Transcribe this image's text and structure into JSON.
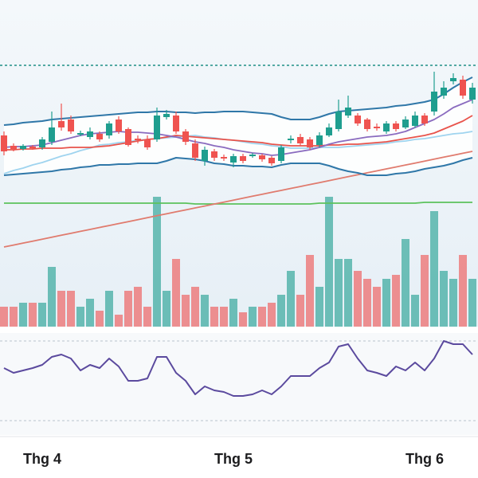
{
  "chart_data": {
    "type": "candlestick",
    "categories": [
      null,
      null,
      null,
      null,
      "Thg 4",
      null,
      null,
      null,
      null,
      null,
      null,
      null,
      null,
      null,
      null,
      null,
      null,
      null,
      null,
      null,
      null,
      null,
      null,
      null,
      "Thg 5",
      null,
      null,
      null,
      null,
      null,
      null,
      null,
      null,
      null,
      null,
      null,
      null,
      null,
      null,
      null,
      null,
      null,
      null,
      null,
      "Thg 6",
      null,
      null,
      null,
      null,
      null
    ],
    "open": [
      80,
      67,
      63,
      66,
      65,
      72,
      98,
      100,
      81,
      78,
      82,
      80,
      100,
      88,
      76,
      75,
      75,
      103,
      105,
      85,
      70,
      48,
      60,
      53,
      46,
      54,
      54,
      55,
      52,
      48,
      74,
      78,
      75,
      68,
      80,
      88,
      105,
      105,
      100,
      91,
      85,
      95,
      90,
      92,
      105,
      110,
      130,
      148,
      150,
      125
    ],
    "high": [
      85,
      70,
      69,
      68,
      78,
      110,
      120,
      105,
      86,
      90,
      85,
      98,
      104,
      90,
      80,
      80,
      115,
      112,
      110,
      88,
      75,
      66,
      63,
      56,
      57,
      57,
      58,
      57,
      54,
      68,
      80,
      82,
      78,
      84,
      95,
      125,
      130,
      108,
      102,
      95,
      98,
      98,
      104,
      110,
      108,
      160,
      148,
      158,
      155,
      146
    ],
    "low": [
      55,
      60,
      61,
      62,
      62,
      68,
      86,
      82,
      79,
      75,
      72,
      76,
      82,
      66,
      70,
      62,
      72,
      100,
      82,
      68,
      48,
      42,
      48,
      48,
      40,
      45,
      52,
      47,
      42,
      45,
      70,
      67,
      62,
      65,
      78,
      85,
      102,
      92,
      85,
      86,
      82,
      85,
      88,
      90,
      92,
      105,
      126,
      144,
      126,
      120
    ],
    "close": [
      60,
      63,
      67,
      64,
      75,
      90,
      90,
      85,
      83,
      85,
      75,
      95,
      85,
      68,
      74,
      65,
      105,
      107,
      85,
      72,
      52,
      62,
      52,
      51,
      54,
      48,
      56,
      50,
      45,
      65,
      76,
      70,
      65,
      80,
      90,
      110,
      115,
      95,
      88,
      89,
      95,
      88,
      100,
      105,
      95,
      135,
      140,
      152,
      130,
      140
    ],
    "up_color": "#1f9e8f",
    "down_color": "#ef5350",
    "ylim": [
      -160,
      250
    ],
    "level": 168,
    "level_color": "#1f8f86",
    "bands": {
      "color": "#2f77a8",
      "fill": "#ffffff",
      "upper": [
        93,
        94,
        96,
        97,
        98,
        100,
        101,
        102,
        103,
        104,
        105,
        106,
        107,
        108,
        109,
        109,
        110,
        110,
        109,
        109,
        108,
        109,
        109,
        110,
        110,
        110,
        109,
        108,
        107,
        103,
        100,
        100,
        100,
        103,
        107,
        110,
        111,
        112,
        113,
        114,
        115,
        117,
        118,
        120,
        122,
        125,
        132,
        140,
        147,
        153
      ],
      "lower": [
        30,
        31,
        32,
        33,
        34,
        35,
        37,
        38,
        40,
        41,
        43,
        43,
        44,
        44,
        45,
        45,
        45,
        48,
        52,
        51,
        50,
        48,
        45,
        44,
        42,
        42,
        41,
        41,
        40,
        43,
        45,
        45,
        45,
        45,
        42,
        38,
        35,
        33,
        30,
        30,
        30,
        32,
        33,
        35,
        38,
        40,
        42,
        45,
        49,
        52
      ]
    },
    "overlays": [
      {
        "color": "#5cc25c",
        "values": [
          -5,
          -5,
          -5,
          -5,
          -5,
          -5,
          -5,
          -5,
          -5,
          -5,
          -5,
          -5,
          -5,
          -5,
          -5,
          -5,
          -5,
          -5,
          -5,
          -5,
          -6,
          -6,
          -6,
          -6,
          -6,
          -6,
          -6,
          -6,
          -6,
          -6,
          -6,
          -6,
          -6,
          -5,
          -5,
          -5,
          -5,
          -5,
          -5,
          -5,
          -5,
          -5,
          -5,
          -5,
          -4,
          -4,
          -4,
          -4,
          -4,
          -4
        ]
      },
      {
        "color": "#e07b6e",
        "values": [
          -60,
          -57.6,
          -55.1,
          -52.7,
          -50.2,
          -47.8,
          -45.3,
          -42.9,
          -40.4,
          -38,
          -35.5,
          -33.1,
          -30.6,
          -28.2,
          -25.7,
          -23.3,
          -20.8,
          -18.4,
          -15.9,
          -13.5,
          -11,
          -8.6,
          -6.1,
          -3.7,
          -1.2,
          1.2,
          3.7,
          6.1,
          8.6,
          11,
          13.5,
          15.9,
          18.4,
          20.8,
          23.3,
          25.7,
          28.2,
          30.6,
          33.1,
          35.5,
          38,
          40.4,
          42.9,
          45.3,
          47.8,
          50.2,
          52.7,
          55.1,
          57.6,
          60
        ]
      },
      {
        "color": "#9fd4ef",
        "values": [
          32,
          36,
          39,
          43,
          46,
          50,
          54,
          57,
          61,
          64,
          68,
          69,
          71,
          72,
          74,
          75,
          76,
          77,
          78,
          79,
          80,
          78,
          77,
          75,
          74,
          72,
          70,
          69,
          67,
          66,
          64,
          64,
          64,
          65,
          65,
          65,
          66,
          67,
          68,
          69,
          70,
          72,
          73,
          75,
          76,
          78,
          80,
          82,
          83,
          85
        ]
      },
      {
        "color": "#e8534b",
        "values": [
          62,
          62,
          63,
          63,
          64,
          64,
          64,
          65,
          65,
          65,
          66,
          67,
          69,
          71,
          73,
          75,
          76,
          78,
          80,
          79,
          78,
          77,
          76,
          75,
          74,
          73,
          72,
          71,
          69,
          68,
          67,
          67,
          67,
          67,
          68,
          68,
          69,
          69,
          70,
          71,
          72,
          74,
          76,
          78,
          80,
          83,
          88,
          93,
          98,
          105
        ]
      },
      {
        "color": "#8a6bbf",
        "values": [
          65,
          66,
          66,
          67,
          68,
          71,
          74,
          77,
          80,
          82,
          83,
          84,
          85,
          84,
          84,
          83,
          82,
          80,
          78,
          75,
          72,
          70,
          67,
          65,
          62,
          60,
          58,
          57,
          55,
          56,
          58,
          60,
          62,
          65,
          69,
          72,
          74,
          76,
          78,
          79,
          80,
          82,
          85,
          90,
          95,
          100,
          107,
          115,
          120,
          125
        ]
      }
    ],
    "volume": {
      "ylim": [
        0,
        410
      ],
      "values": [
        25,
        25,
        30,
        30,
        30,
        75,
        45,
        45,
        25,
        35,
        20,
        45,
        15,
        45,
        50,
        25,
        163,
        45,
        85,
        40,
        50,
        40,
        25,
        25,
        35,
        18,
        25,
        25,
        30,
        40,
        70,
        40,
        90,
        50,
        163,
        85,
        85,
        70,
        60,
        50,
        60,
        65,
        110,
        40,
        90,
        145,
        70,
        60,
        90,
        60
      ]
    },
    "rsi": {
      "color": "#5b4a9e",
      "ylim": [
        30,
        70
      ],
      "levels": [
        70,
        30
      ],
      "values": [
        56.4,
        54,
        55.2,
        56.4,
        58,
        62,
        63.2,
        61.2,
        55.2,
        58,
        56.4,
        61.2,
        57.2,
        50,
        50,
        51.2,
        62,
        62,
        54,
        50,
        43.2,
        47.2,
        45.2,
        44.4,
        42.4,
        42.4,
        43.2,
        45.2,
        43.2,
        47.2,
        52.4,
        52.4,
        52.4,
        56.4,
        59.2,
        67.2,
        68.4,
        61.2,
        55.2,
        54,
        52.4,
        57.2,
        55.2,
        59.2,
        55.2,
        61.2,
        70,
        68.4,
        68.4,
        63.2
      ]
    }
  }
}
